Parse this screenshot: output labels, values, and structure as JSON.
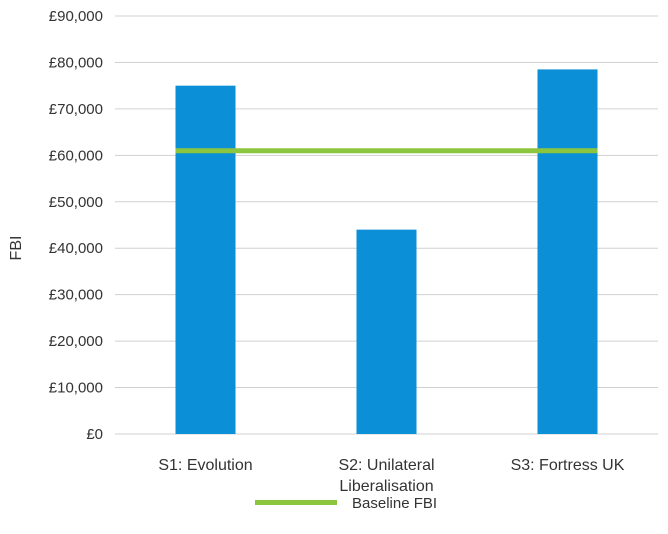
{
  "chart_data": {
    "type": "bar",
    "categories": [
      [
        "S1: Evolution"
      ],
      [
        "S2: Unilateral",
        "Liberalisation"
      ],
      [
        "S3: Fortress UK"
      ]
    ],
    "series": [
      {
        "values": [
          75000,
          44000,
          78500
        ],
        "color": "#0b8fd6"
      }
    ],
    "baseline": {
      "name": "Baseline FBI",
      "value": 61000,
      "color": "#8cc63f"
    },
    "ylabel": "FBI",
    "xlabel": "",
    "ylim": [
      0,
      90000
    ],
    "ytick_step": 10000,
    "yticks": [
      "£0",
      "£10,000",
      "£20,000",
      "£30,000",
      "£40,000",
      "£50,000",
      "£60,000",
      "£70,000",
      "£80,000",
      "£90,000"
    ],
    "grid": true,
    "legend_position": "bottom"
  }
}
